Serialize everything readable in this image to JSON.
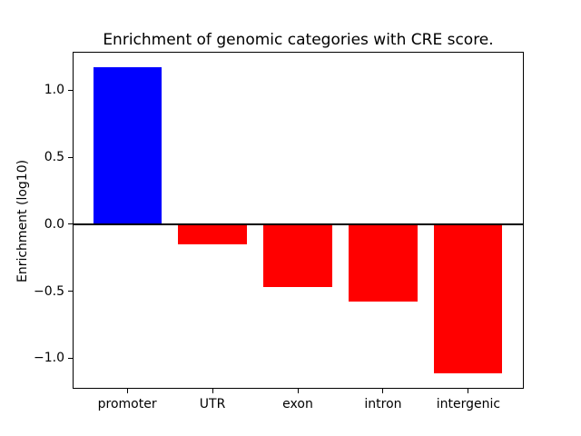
{
  "figure": {
    "title": "Enrichment of genomic categories with CRE score."
  },
  "chart_data": {
    "type": "bar",
    "title": "Enrichment of genomic categories with CRE score.",
    "xlabel": "",
    "ylabel": "Enrichment (log10)",
    "categories": [
      "promoter",
      "UTR",
      "exon",
      "intron",
      "intergenic"
    ],
    "values": [
      1.17,
      -0.15,
      -0.47,
      -0.58,
      -1.11
    ],
    "bar_colors": [
      "#0000ff",
      "#ff0000",
      "#ff0000",
      "#ff0000",
      "#ff0000"
    ],
    "positive_color": "#0000ff",
    "negative_color": "#ff0000",
    "bar_width_ratio": 0.8,
    "ylim": [
      -1.224,
      1.284
    ],
    "xlim": [
      -0.64,
      4.64
    ],
    "yticks": [
      {
        "value": 1.0,
        "label": "1.0"
      },
      {
        "value": 0.5,
        "label": "0.5"
      },
      {
        "value": 0.0,
        "label": "0.0"
      },
      {
        "value": -0.5,
        "label": "−0.5"
      },
      {
        "value": -1.0,
        "label": "−1.0"
      }
    ],
    "zero_line": true,
    "grid": false,
    "legend": null
  }
}
